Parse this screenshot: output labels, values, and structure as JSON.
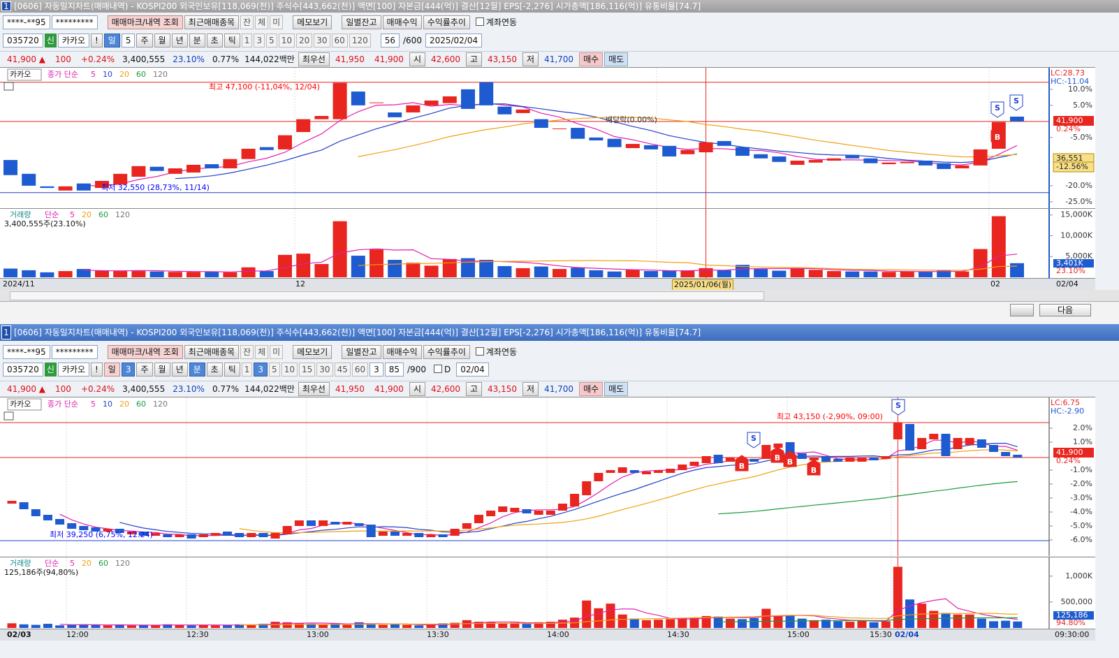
{
  "windows": [
    {
      "number": "1",
      "title": "[0606] 자동일지차트(매매내역) - KOSPI200 외국인보유[118,069(천)] 주식수[443,662(천)] 액면[100] 자본금[444(억)] 결산[12월] EPS[-2,276] 시가총액[186,116(억)] 유통비율[74.7]",
      "toolbar1": [
        "****-**95",
        "*********",
        "매매마크/내역 조회",
        "최근매매종목",
        "잔",
        "체",
        "미",
        "메모보기",
        "일별잔고",
        "매매수익",
        "수익률추이",
        "계좌연동"
      ],
      "toolbar2": [
        "035720",
        "신",
        "카카오",
        "!",
        "일",
        "5",
        "주",
        "월",
        "년",
        "분",
        "초",
        "틱",
        "1",
        "3",
        "5",
        "10",
        "20",
        "30",
        "60",
        "120",
        "56",
        "/600",
        "2025/02/04"
      ],
      "quote": [
        "41,900 ▲",
        "100",
        "+0.24%",
        "3,400,555",
        "23.10%",
        "0.77%",
        "144,022백만",
        "최우선",
        "41,950",
        "41,900",
        "시",
        "42,600",
        "고",
        "43,150",
        "저",
        "41,700",
        "매수",
        "매도"
      ],
      "price_chart": {
        "type": "candlestick",
        "name": "카카오",
        "ma_label": "종가 단순",
        "ma": [
          {
            "name": "5",
            "color": "#e01fb0"
          },
          {
            "name": "10",
            "color": "#2340c8"
          },
          {
            "name": "20",
            "color": "#f0a010"
          },
          {
            "name": "60",
            "color": "#1a9a3a"
          },
          {
            "name": "120",
            "color": "#777777"
          }
        ],
        "up_color": "#e8251f",
        "down_color": "#1e5bd0",
        "annotations": [
          "최고 47,100 (-11,04%, 12/04)",
          "최저 32,550 (28,73%, 11/14)",
          "배당락(0.00%)"
        ],
        "info": [
          "LC:28.73",
          "HC:-11.04"
        ],
        "markers": [
          "S",
          "S",
          "B"
        ],
        "tags": [
          "41,900",
          "0.24%",
          "36,551",
          "-12.56%"
        ],
        "ylim": [
          -27.2,
          16.7
        ],
        "yticks": [
          {
            "value": 10,
            "label": "10.0%"
          },
          {
            "value": 5,
            "label": "5.0%"
          },
          {
            "value": -5,
            "label": "-5.0%"
          },
          {
            "value": -20,
            "label": "-20.0%"
          },
          {
            "value": -25,
            "label": "-25.0%"
          }
        ],
        "candles": [
          [
            -12.0,
            -16.7
          ],
          [
            -16.3,
            -20.0
          ],
          [
            -20.2,
            -20.7
          ],
          [
            -21.5,
            -20.2
          ],
          [
            -19.3,
            -21.5
          ],
          [
            -20.7,
            -18.5
          ],
          [
            -19.6,
            -16.3
          ],
          [
            -17.2,
            -13.9
          ],
          [
            -14.1,
            -15.4
          ],
          [
            -16.3,
            -14.6
          ],
          [
            -15.9,
            -13.5
          ],
          [
            -13.3,
            -14.6
          ],
          [
            -14.6,
            -11.7
          ],
          [
            -11.7,
            -8.5
          ],
          [
            -8.0,
            -8.9
          ],
          [
            -8.7,
            -4.3
          ],
          [
            -3.3,
            0.7
          ],
          [
            0.7,
            1.7
          ],
          [
            0.7,
            12.0
          ],
          [
            9.3,
            5.0
          ],
          [
            5.7,
            5.9
          ],
          [
            2.8,
            1.3
          ],
          [
            2.8,
            5.0
          ],
          [
            5.0,
            6.5
          ],
          [
            5.7,
            7.8
          ],
          [
            10.0,
            3.9
          ],
          [
            12.2,
            5.0
          ],
          [
            4.6,
            2.2
          ],
          [
            2.6,
            3.7
          ],
          [
            0.7,
            -2.0
          ],
          [
            -2.2,
            -2.2
          ],
          [
            -2.0,
            -5.4
          ],
          [
            -5.0,
            -5.9
          ],
          [
            -5.4,
            -8.0
          ],
          [
            -8.3,
            -7.0
          ],
          [
            -7.4,
            -8.7
          ],
          [
            -7.6,
            -10.9
          ],
          [
            -10.2,
            -8.9
          ],
          [
            -9.6,
            -6.5
          ],
          [
            -6.1,
            -7.6
          ],
          [
            -8.0,
            -10.7
          ],
          [
            -10.2,
            -11.5
          ],
          [
            -10.9,
            -12.6
          ],
          [
            -13.5,
            -12.2
          ],
          [
            -12.8,
            -12.0
          ],
          [
            -12.2,
            -11.5
          ],
          [
            -10.4,
            -11.5
          ],
          [
            -11.5,
            -13.0
          ],
          [
            -13.3,
            -12.8
          ],
          [
            -13.0,
            -12.6
          ],
          [
            -12.2,
            -13.7
          ],
          [
            -13.0,
            -14.8
          ],
          [
            -14.6,
            -13.7
          ],
          [
            -13.7,
            -8.7
          ],
          [
            -8.5,
            -0.2
          ],
          [
            1.5,
            0.0
          ]
        ]
      },
      "volume_chart": {
        "type": "bar",
        "name": "거래량",
        "ma_label": "단순",
        "ma": [
          {
            "name": "5",
            "color": "#e01fb0"
          },
          {
            "name": "20",
            "color": "#f0a010"
          },
          {
            "name": "60",
            "color": "#1a9a3a"
          },
          {
            "name": "120",
            "color": "#777777"
          }
        ],
        "summary": "3,400,555주(23.10%)",
        "tags": [
          "3,401K",
          "23.10%"
        ],
        "ylim": [
          0,
          16470
        ],
        "yticks": [
          {
            "value": 15000,
            "label": "15,000K"
          },
          {
            "value": 10000,
            "label": "10,000K"
          },
          {
            "value": 5000,
            "label": "5,000K"
          }
        ],
        "values": [
          2100,
          1700,
          1200,
          1500,
          2000,
          1600,
          1500,
          1500,
          1400,
          1300,
          1300,
          1300,
          1200,
          2400,
          1500,
          5400,
          5700,
          3200,
          13500,
          5200,
          6700,
          4200,
          3500,
          2800,
          4400,
          4600,
          4200,
          2700,
          2200,
          2600,
          2000,
          2300,
          1700,
          1400,
          1800,
          1500,
          1600,
          1600,
          2200,
          1700,
          3000,
          2000,
          1600,
          2200,
          1800,
          1500,
          1400,
          1400,
          1300,
          1400,
          1300,
          1600,
          1400,
          6800,
          14700,
          3401
        ]
      },
      "x_labels": [
        "2024/11",
        "12",
        "2025/01/06(월)",
        "02",
        "02/04"
      ],
      "next": "다음"
    },
    {
      "number": "1",
      "title": "[0606] 자동일지차트(매매내역) - KOSPI200 외국인보유[118,069(천)] 주식수[443,662(천)] 액면[100] 자본금[444(억)] 결산[12월] EPS[-2,276] 시가총액[186,116(억)] 유통비율[74.7]",
      "toolbar1": [
        "****-**95",
        "*********",
        "매매마크/내역 조회",
        "최근매매종목",
        "잔",
        "체",
        "미",
        "메모보기",
        "일별잔고",
        "매매수익",
        "수익률추이",
        "계좌연동"
      ],
      "toolbar2": [
        "035720",
        "신",
        "카카오",
        "!",
        "일",
        "3",
        "주",
        "월",
        "년",
        "분",
        "초",
        "틱",
        "1",
        "3",
        "5",
        "10",
        "15",
        "30",
        "45",
        "60",
        "3",
        "85",
        "/900",
        "D",
        "02/04"
      ],
      "quote": [
        "41,900 ▲",
        "100",
        "+0.24%",
        "3,400,555",
        "23.10%",
        "0.77%",
        "144,022백만",
        "최우선",
        "41,950",
        "41,900",
        "시",
        "42,600",
        "고",
        "43,150",
        "저",
        "41,700",
        "매수",
        "매도"
      ],
      "price_chart": {
        "type": "candlestick",
        "name": "카카오",
        "ma_label": "종가 단순",
        "ma": [
          {
            "name": "5",
            "color": "#e01fb0"
          },
          {
            "name": "10",
            "color": "#2340c8"
          },
          {
            "name": "20",
            "color": "#f0a010"
          },
          {
            "name": "60",
            "color": "#1a9a3a"
          },
          {
            "name": "120",
            "color": "#777777"
          }
        ],
        "up_color": "#e8251f",
        "down_color": "#1e5bd0",
        "annotations": [
          "최고 43,150 (-2,90%, 09:00)",
          "최저 39,250 (6,75%, 12:24)"
        ],
        "info": [
          "LC:6.75",
          "HC:-2.90"
        ],
        "markers": [
          "S",
          "S",
          "B",
          "B",
          "B",
          "B"
        ],
        "tags": [
          "41,900",
          "0.24%"
        ],
        "ylim": [
          -7.15,
          4.2
        ],
        "yticks": [
          {
            "value": 2,
            "label": "2.0%"
          },
          {
            "value": 1,
            "label": "1.0%"
          },
          {
            "value": -1,
            "label": "-1.0%"
          },
          {
            "value": -2,
            "label": "-2.0%"
          },
          {
            "value": -3,
            "label": "-3.0%"
          },
          {
            "value": -4,
            "label": "-4.0%"
          },
          {
            "value": -5,
            "label": "-5.0%"
          },
          {
            "value": -6,
            "label": "-6.0%"
          }
        ],
        "candles": [
          [
            -3.4,
            -3.2
          ],
          [
            -3.3,
            -3.8
          ],
          [
            -3.8,
            -4.3
          ],
          [
            -4.2,
            -4.6
          ],
          [
            -4.5,
            -4.9
          ],
          [
            -4.8,
            -5.2
          ],
          [
            -5.0,
            -5.3
          ],
          [
            -5.1,
            -5.4
          ],
          [
            -5.4,
            -5.2
          ],
          [
            -5.2,
            -5.5
          ],
          [
            -5.6,
            -5.4
          ],
          [
            -5.4,
            -5.7
          ],
          [
            -5.7,
            -5.5
          ],
          [
            -5.6,
            -5.8
          ],
          [
            -5.8,
            -5.6
          ],
          [
            -5.6,
            -5.9
          ],
          [
            -5.8,
            -5.6
          ],
          [
            -5.7,
            -5.5
          ],
          [
            -5.4,
            -5.7
          ],
          [
            -5.5,
            -5.8
          ],
          [
            -5.8,
            -5.5
          ],
          [
            -5.5,
            -5.8
          ],
          [
            -5.9,
            -5.5
          ],
          [
            -5.6,
            -5.0
          ],
          [
            -5.0,
            -4.6
          ],
          [
            -4.6,
            -5.0
          ],
          [
            -5.0,
            -4.6
          ],
          [
            -4.7,
            -4.9
          ],
          [
            -4.9,
            -4.7
          ],
          [
            -4.8,
            -5.0
          ],
          [
            -4.9,
            -5.8
          ],
          [
            -5.7,
            -5.4
          ],
          [
            -5.4,
            -5.7
          ],
          [
            -5.7,
            -5.5
          ],
          [
            -5.5,
            -5.8
          ],
          [
            -5.8,
            -5.6
          ],
          [
            -5.6,
            -5.8
          ],
          [
            -5.7,
            -5.2
          ],
          [
            -5.2,
            -4.8
          ],
          [
            -4.8,
            -4.2
          ],
          [
            -4.3,
            -3.9
          ],
          [
            -4.0,
            -3.6
          ],
          [
            -4.0,
            -3.7
          ],
          [
            -3.8,
            -4.1
          ],
          [
            -4.2,
            -3.9
          ],
          [
            -4.2,
            -3.9
          ],
          [
            -3.9,
            -3.4
          ],
          [
            -3.6,
            -2.7
          ],
          [
            -2.8,
            -1.8
          ],
          [
            -1.8,
            -1.2
          ],
          [
            -1.2,
            -1.0
          ],
          [
            -1.2,
            -0.8
          ],
          [
            -1.0,
            -1.2
          ],
          [
            -1.3,
            -1.1
          ],
          [
            -1.2,
            -1.0
          ],
          [
            -1.2,
            -0.9
          ],
          [
            -1.0,
            -0.6
          ],
          [
            -0.7,
            -0.4
          ],
          [
            -0.5,
            0.0
          ],
          [
            0.1,
            -0.5
          ],
          [
            -0.4,
            -0.1
          ],
          [
            -0.1,
            -0.4
          ],
          [
            -0.2,
            -0.4
          ],
          [
            -0.2,
            0.8
          ],
          [
            0.6,
            0.9
          ],
          [
            1.0,
            0.1
          ],
          [
            0.2,
            -0.2
          ],
          [
            -0.3,
            -0.1
          ],
          [
            0.0,
            -0.4
          ],
          [
            -0.2,
            -0.4
          ],
          [
            -0.4,
            -0.1
          ],
          [
            -0.4,
            -0.1
          ],
          [
            -0.1,
            -0.3
          ],
          [
            -0.2,
            0.0
          ],
          [
            1.2,
            2.4
          ],
          [
            2.3,
            0.4
          ],
          [
            0.5,
            1.3
          ],
          [
            1.2,
            1.6
          ],
          [
            1.6,
            0.0
          ],
          [
            0.5,
            1.3
          ],
          [
            0.8,
            1.3
          ],
          [
            1.2,
            0.6
          ],
          [
            0.8,
            0.3
          ],
          [
            0.3,
            0.0
          ],
          [
            0.1,
            -0.1
          ]
        ]
      },
      "volume_chart": {
        "type": "bar",
        "name": "거래량",
        "ma_label": "단순",
        "ma": [
          {
            "name": "5",
            "color": "#e01fb0"
          },
          {
            "name": "20",
            "color": "#f0a010"
          },
          {
            "name": "60",
            "color": "#1a9a3a"
          },
          {
            "name": "120",
            "color": "#777777"
          }
        ],
        "summary": "125,186주(94,80%)",
        "tags": [
          "125,186",
          "94.80%"
        ],
        "ylim": [
          0,
          1361000
        ],
        "yticks": [
          {
            "value": 1000000,
            "label": "1,000K"
          },
          {
            "value": 500000,
            "label": "500,000"
          }
        ],
        "values": [
          90000,
          70000,
          60000,
          80000,
          50000,
          60000,
          70000,
          60000,
          50000,
          60000,
          50000,
          60000,
          50000,
          70000,
          60000,
          50000,
          60000,
          50000,
          60000,
          70000,
          60000,
          80000,
          120000,
          110000,
          90000,
          80000,
          70000,
          90000,
          60000,
          110000,
          80000,
          60000,
          70000,
          60000,
          50000,
          60000,
          90000,
          100000,
          150000,
          120000,
          110000,
          90000,
          100000,
          80000,
          110000,
          120000,
          160000,
          200000,
          530000,
          380000,
          470000,
          260000,
          180000,
          150000,
          160000,
          170000,
          190000,
          200000,
          230000,
          220000,
          180000,
          170000,
          190000,
          370000,
          230000,
          240000,
          180000,
          150000,
          160000,
          130000,
          120000,
          150000,
          110000,
          130000,
          1180000,
          550000,
          470000,
          330000,
          290000,
          260000,
          260000,
          180000,
          130000,
          140000,
          125186
        ]
      },
      "x_labels": [
        "02/03",
        "12:00",
        "12:30",
        "13:00",
        "13:30",
        "14:00",
        "14:30",
        "15:00",
        "15:30",
        "02/04",
        "09:30:00"
      ]
    }
  ]
}
